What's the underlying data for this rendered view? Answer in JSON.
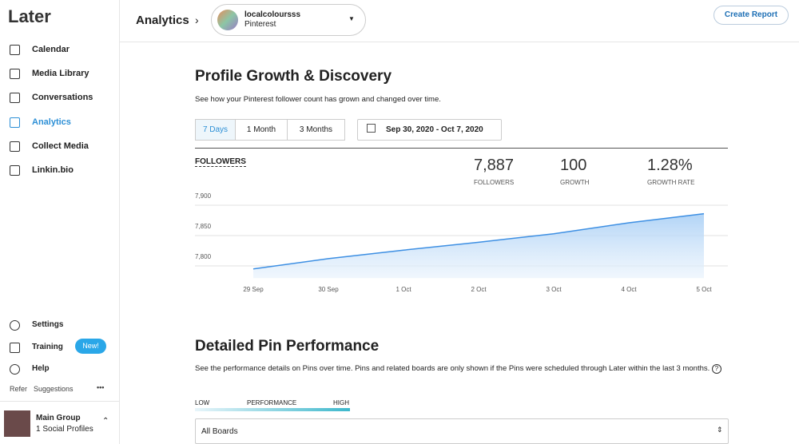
{
  "sidebar": {
    "logo": "Later",
    "nav": [
      "Calendar",
      "Media Library",
      "Conversations",
      "Analytics",
      "Collect Media",
      "Linkin.bio"
    ],
    "bottom": [
      "Settings",
      "Training",
      "Help"
    ],
    "badge": "New!",
    "refer": "Refer",
    "suggestions": "Suggestions",
    "group": {
      "name": "Main Group",
      "profiles": "1 Social Profiles"
    }
  },
  "header": {
    "title": "Analytics",
    "profile": "localcoloursss",
    "network": "Pinterest",
    "button": "Create Report"
  },
  "growth": {
    "title": "Profile Growth & Discovery",
    "description": "See how your Pinterest follower count has grown and changed over time.",
    "tabs": [
      "7 Days",
      "1 Month",
      "3 Months"
    ],
    "range": "Sep 30, 2020 - Oct 7, 2020",
    "metric": "FOLLOWERS",
    "stats": [
      {
        "value": "7,887",
        "label": "FOLLOWERS"
      },
      {
        "value": "100",
        "label": "GROWTH"
      },
      {
        "value": "1.28%",
        "label": "GROWTH RATE"
      }
    ]
  },
  "chart_data": {
    "type": "area",
    "categories": [
      "29 Sep",
      "30 Sep",
      "1 Oct",
      "2 Oct",
      "3 Oct",
      "4 Oct",
      "5 Oct"
    ],
    "values": [
      7795,
      7812,
      7826,
      7839,
      7853,
      7871,
      7886
    ],
    "color": "#3d8fe3",
    "ylim": [
      7780,
      7910
    ],
    "yticks": [
      {
        "value": 7800,
        "label": "7,800"
      },
      {
        "value": 7850,
        "label": "7,850"
      },
      {
        "value": 7900,
        "label": "7,900"
      }
    ],
    "grid": true
  },
  "pins": {
    "title": "Detailed Pin Performance",
    "description": "See the performance details on Pins over time. Pins and related boards are only shown if the Pins were scheduled through Later within the last 3 months.",
    "legend": [
      "LOW",
      "PERFORMANCE",
      "HIGH"
    ],
    "select": "All Boards"
  }
}
